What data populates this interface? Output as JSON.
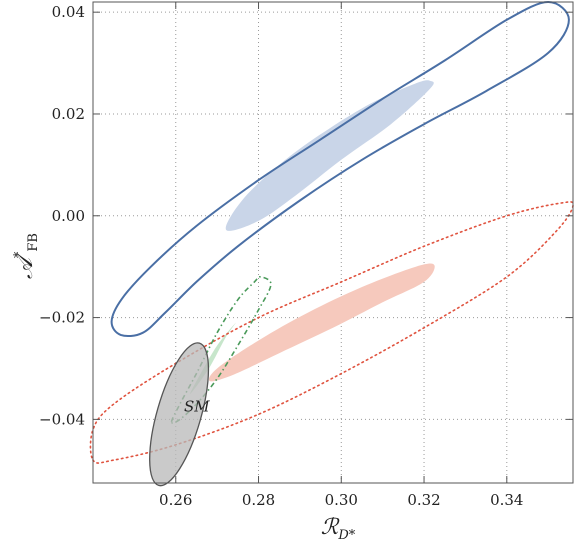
{
  "chart_data": {
    "type": "contour",
    "xlabel": "ℛ",
    "xlabel_sub": "D*",
    "ylabel": "𝒜",
    "ylabel_sub": "FB",
    "ylabel_sup": "*",
    "xlim": [
      0.24,
      0.356
    ],
    "ylim": [
      -0.0525,
      0.042
    ],
    "xticks": [
      0.26,
      0.28,
      0.3,
      0.32,
      0.34
    ],
    "xtick_labels": [
      "0.26",
      "0.28",
      "0.30",
      "0.32",
      "0.34"
    ],
    "yticks": [
      -0.04,
      -0.02,
      0.0,
      0.02,
      0.04
    ],
    "ytick_labels": [
      "−0.04",
      "−0.02",
      "0.00",
      "0.02",
      "0.04"
    ],
    "grid": true,
    "regions": [
      {
        "id": "blue-outer",
        "style": "outline-solid",
        "color": "#4a6fa5",
        "points": [
          [
            0.2467,
            -0.0234
          ],
          [
            0.2445,
            -0.0208
          ],
          [
            0.247,
            -0.0163
          ],
          [
            0.254,
            -0.01
          ],
          [
            0.265,
            -0.002
          ],
          [
            0.28,
            0.007
          ],
          [
            0.295,
            0.015
          ],
          [
            0.31,
            0.023
          ],
          [
            0.325,
            0.0305
          ],
          [
            0.34,
            0.0385
          ],
          [
            0.35,
            0.042
          ],
          [
            0.355,
            0.0385
          ],
          [
            0.35,
            0.032
          ],
          [
            0.335,
            0.0245
          ],
          [
            0.32,
            0.018
          ],
          [
            0.305,
            0.011
          ],
          [
            0.29,
            0.003
          ],
          [
            0.275,
            -0.006
          ],
          [
            0.265,
            -0.013
          ],
          [
            0.2575,
            -0.019
          ],
          [
            0.252,
            -0.023
          ]
        ]
      },
      {
        "id": "blue-inner",
        "style": "filled",
        "color": "#c9d5e8",
        "points": [
          [
            0.2722,
            -0.0028
          ],
          [
            0.276,
            0.003
          ],
          [
            0.285,
            0.01
          ],
          [
            0.295,
            0.016
          ],
          [
            0.307,
            0.022
          ],
          [
            0.318,
            0.026
          ],
          [
            0.3215,
            0.0265
          ],
          [
            0.3215,
            0.025
          ],
          [
            0.312,
            0.018
          ],
          [
            0.3,
            0.011
          ],
          [
            0.289,
            0.004
          ],
          [
            0.28,
            -0.001
          ]
        ]
      },
      {
        "id": "red-outer",
        "style": "outline-dotted",
        "color": "#e0533f",
        "points": [
          [
            0.24,
            -0.048
          ],
          [
            0.245,
            -0.048
          ],
          [
            0.26,
            -0.045
          ],
          [
            0.28,
            -0.039
          ],
          [
            0.3,
            -0.031
          ],
          [
            0.32,
            -0.022
          ],
          [
            0.34,
            -0.012
          ],
          [
            0.352,
            -0.003
          ],
          [
            0.356,
            0.002
          ],
          [
            0.353,
            0.0025
          ],
          [
            0.34,
            0.0
          ],
          [
            0.32,
            -0.006
          ],
          [
            0.3,
            -0.013
          ],
          [
            0.28,
            -0.02
          ],
          [
            0.26,
            -0.029
          ],
          [
            0.245,
            -0.037
          ],
          [
            0.24,
            -0.042
          ]
        ]
      },
      {
        "id": "red-inner",
        "style": "filled",
        "color": "#f6c9bd",
        "points": [
          [
            0.2683,
            -0.0325
          ],
          [
            0.274,
            -0.0312
          ],
          [
            0.285,
            -0.027
          ],
          [
            0.298,
            -0.022
          ],
          [
            0.31,
            -0.017
          ],
          [
            0.32,
            -0.013
          ],
          [
            0.3225,
            -0.0097
          ],
          [
            0.318,
            -0.01
          ],
          [
            0.305,
            -0.014
          ],
          [
            0.292,
            -0.019
          ],
          [
            0.28,
            -0.0245
          ],
          [
            0.27,
            -0.03
          ]
        ]
      },
      {
        "id": "green-outer",
        "style": "outline-dashdot",
        "color": "#4a9a5a",
        "points": [
          [
            0.259,
            -0.0405
          ],
          [
            0.261,
            -0.037
          ],
          [
            0.265,
            -0.031
          ],
          [
            0.27,
            -0.023
          ],
          [
            0.275,
            -0.0165
          ],
          [
            0.279,
            -0.013
          ],
          [
            0.2805,
            -0.012
          ],
          [
            0.283,
            -0.0135
          ],
          [
            0.28,
            -0.0185
          ],
          [
            0.275,
            -0.0255
          ],
          [
            0.27,
            -0.032
          ],
          [
            0.265,
            -0.037
          ],
          [
            0.261,
            -0.04
          ]
        ]
      },
      {
        "id": "green-inner",
        "style": "filled",
        "color": "#c7e6cb",
        "points": [
          [
            0.2635,
            -0.035
          ],
          [
            0.268,
            -0.03
          ],
          [
            0.272,
            -0.024
          ],
          [
            0.2745,
            -0.021
          ],
          [
            0.27,
            -0.0255
          ],
          [
            0.266,
            -0.031
          ]
        ]
      },
      {
        "id": "sm-ellipse",
        "style": "ellipse",
        "color": "#555555",
        "fill": "#b8b8b8",
        "center": [
          0.2608,
          -0.039
        ],
        "rx_px": 22,
        "ry_px": 74,
        "rotation_deg": 16
      }
    ],
    "annotations": [
      {
        "text": "SM",
        "x": 0.262,
        "y": -0.0385
      }
    ]
  }
}
